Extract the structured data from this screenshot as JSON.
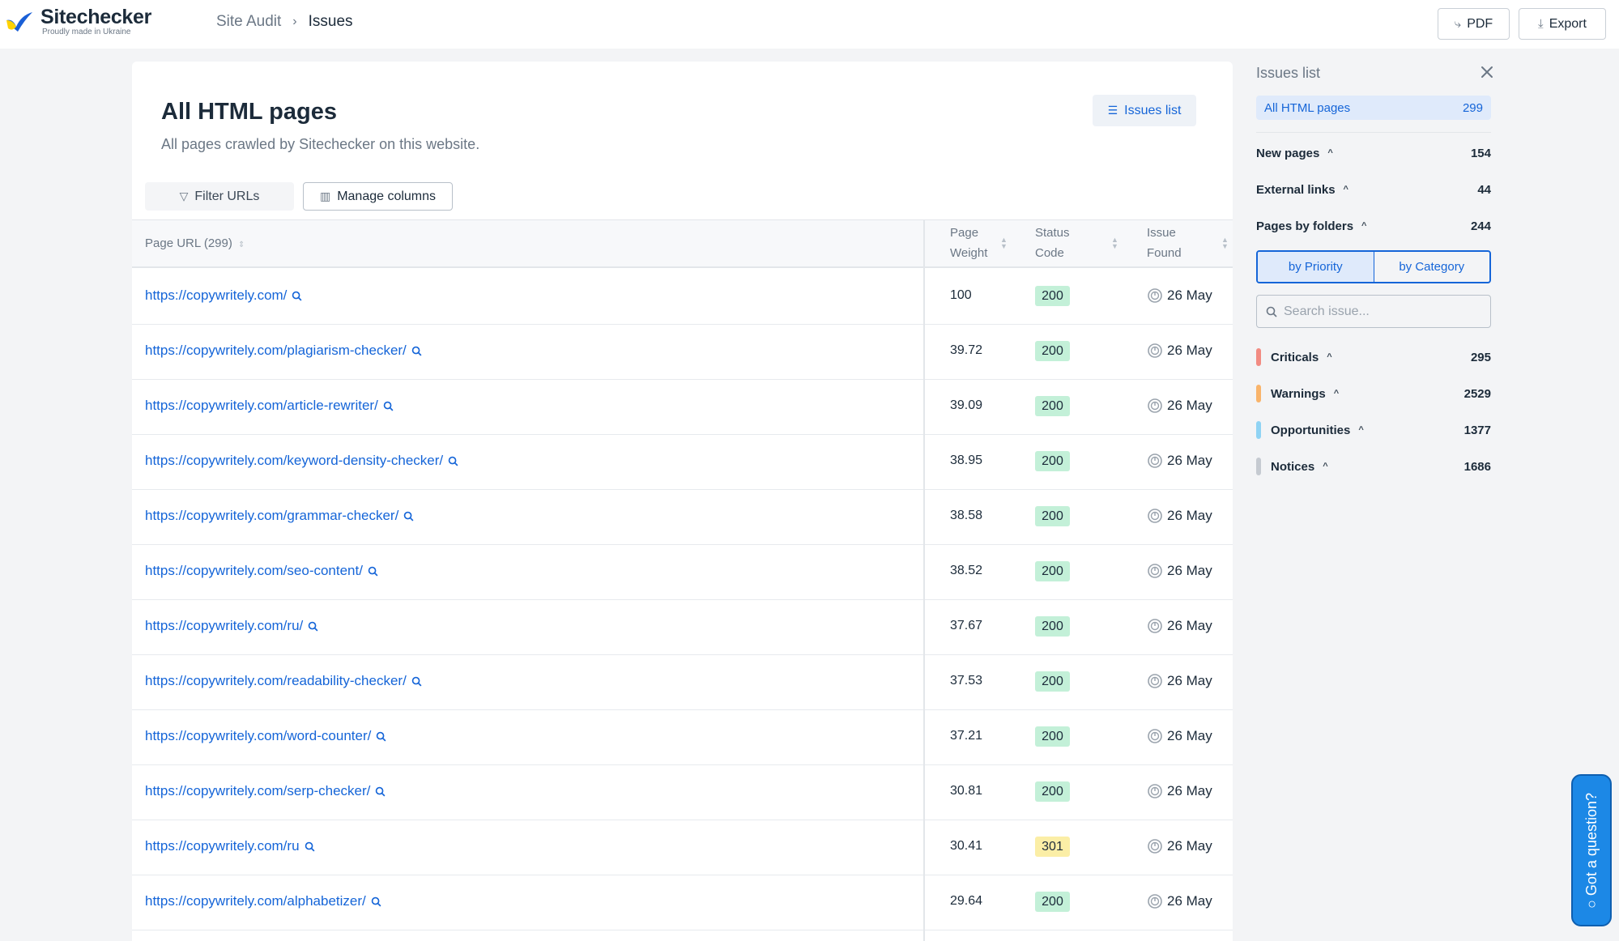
{
  "header": {
    "brand": "Sitechecker",
    "brand_tagline": "Proudly made in Ukraine",
    "breadcrumb": [
      "Site Audit",
      "Issues"
    ],
    "pdf_label": "PDF",
    "export_label": "Export"
  },
  "main": {
    "title": "All HTML pages",
    "subtitle": "All pages crawled by Sitechecker on this website.",
    "issues_list_label": "Issues list",
    "filter_label": "Filter URLs",
    "manage_columns_label": "Manage columns",
    "columns": {
      "url": "Page URL (299)",
      "weight_1": "Page",
      "weight_2": "Weight",
      "status_1": "Status",
      "status_2": "Code",
      "issue_1": "Issue",
      "issue_2": "Found"
    },
    "rows": [
      {
        "url": "https://copywritely.com/",
        "weight": "100",
        "status": "200",
        "found": "26 May"
      },
      {
        "url": "https://copywritely.com/plagiarism-checker/",
        "weight": "39.72",
        "status": "200",
        "found": "26 May"
      },
      {
        "url": "https://copywritely.com/article-rewriter/",
        "weight": "39.09",
        "status": "200",
        "found": "26 May"
      },
      {
        "url": "https://copywritely.com/keyword-density-checker/",
        "weight": "38.95",
        "status": "200",
        "found": "26 May"
      },
      {
        "url": "https://copywritely.com/grammar-checker/",
        "weight": "38.58",
        "status": "200",
        "found": "26 May"
      },
      {
        "url": "https://copywritely.com/seo-content/",
        "weight": "38.52",
        "status": "200",
        "found": "26 May"
      },
      {
        "url": "https://copywritely.com/ru/",
        "weight": "37.67",
        "status": "200",
        "found": "26 May"
      },
      {
        "url": "https://copywritely.com/readability-checker/",
        "weight": "37.53",
        "status": "200",
        "found": "26 May"
      },
      {
        "url": "https://copywritely.com/word-counter/",
        "weight": "37.21",
        "status": "200",
        "found": "26 May"
      },
      {
        "url": "https://copywritely.com/serp-checker/",
        "weight": "30.81",
        "status": "200",
        "found": "26 May"
      },
      {
        "url": "https://copywritely.com/ru",
        "weight": "30.41",
        "status": "301",
        "found": "26 May"
      },
      {
        "url": "https://copywritely.com/alphabetizer/",
        "weight": "29.64",
        "status": "200",
        "found": "26 May"
      }
    ]
  },
  "side": {
    "title": "Issues list",
    "all_html": {
      "label": "All HTML pages",
      "count": "299"
    },
    "groups": [
      {
        "label": "New pages",
        "count": "154"
      },
      {
        "label": "External links",
        "count": "44"
      },
      {
        "label": "Pages by folders",
        "count": "244"
      }
    ],
    "toggle": [
      "by Priority",
      "by Category"
    ],
    "search_placeholder": "Search issue...",
    "categories": [
      {
        "label": "Criticals",
        "count": "295",
        "color": "#f28b82"
      },
      {
        "label": "Warnings",
        "count": "2529",
        "color": "#f9b46b"
      },
      {
        "label": "Opportunities",
        "count": "1377",
        "color": "#8fd3f4"
      },
      {
        "label": "Notices",
        "count": "1686",
        "color": "#c5cad1"
      }
    ]
  },
  "help": {
    "label": "Got a question?"
  }
}
